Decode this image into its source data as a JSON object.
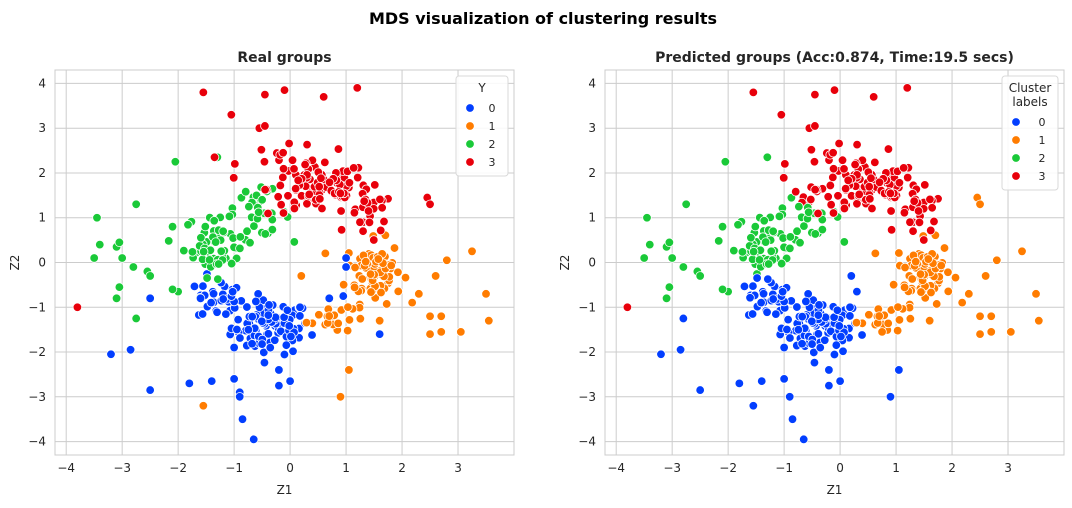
{
  "figure": {
    "suptitle": "MDS visualization of clustering results"
  },
  "colors": {
    "0": "#023eff",
    "1": "#ff7c00",
    "2": "#1ac938",
    "3": "#e8000b"
  },
  "chart_data": [
    {
      "type": "scatter",
      "title": "Real groups",
      "xlabel": "Z1",
      "ylabel": "Z2",
      "xlim": [
        -4.2,
        4.0
      ],
      "ylim": [
        -4.3,
        4.3
      ],
      "xticks": [
        -4,
        -3,
        -2,
        -1,
        0,
        1,
        2,
        3
      ],
      "yticks": [
        -4,
        -3,
        -2,
        -1,
        0,
        1,
        2,
        3,
        4
      ],
      "grid": true,
      "legend": {
        "title": "Y",
        "placement": "top-right",
        "labels": [
          "0",
          "1",
          "2",
          "3"
        ]
      },
      "outliers": [
        [
          -3.2,
          -2.05,
          0
        ],
        [
          -2.85,
          -1.95,
          0
        ],
        [
          -2.5,
          -2.85,
          0
        ],
        [
          -2.5,
          -0.8,
          0
        ],
        [
          -1.8,
          -2.7,
          0
        ],
        [
          -1.4,
          -2.65,
          0
        ],
        [
          -1.0,
          -2.6,
          0
        ],
        [
          -0.9,
          -2.9,
          0
        ],
        [
          -0.9,
          -3.0,
          0
        ],
        [
          -0.85,
          -3.5,
          0
        ],
        [
          -0.65,
          -3.95,
          0
        ],
        [
          -0.2,
          -2.75,
          0
        ],
        [
          -0.2,
          -2.4,
          0
        ],
        [
          0.0,
          -2.65,
          0
        ],
        [
          -1.6,
          -0.8,
          0
        ],
        [
          -1.0,
          -1.9,
          0
        ],
        [
          0.7,
          -0.8,
          0
        ],
        [
          0.95,
          -0.75,
          0
        ],
        [
          1.0,
          -0.1,
          0
        ],
        [
          1.0,
          0.1,
          0
        ],
        [
          1.6,
          -1.6,
          0
        ],
        [
          -1.55,
          -3.2,
          1
        ],
        [
          0.9,
          -3.0,
          1
        ],
        [
          1.05,
          -2.4,
          1
        ],
        [
          1.6,
          -1.3,
          1
        ],
        [
          2.3,
          -0.7,
          1
        ],
        [
          2.5,
          -1.2,
          1
        ],
        [
          2.5,
          -1.6,
          1
        ],
        [
          2.6,
          -0.3,
          1
        ],
        [
          2.7,
          -1.55,
          1
        ],
        [
          2.7,
          -1.2,
          1
        ],
        [
          3.05,
          -1.55,
          1
        ],
        [
          3.25,
          0.25,
          1
        ],
        [
          3.5,
          -0.7,
          1
        ],
        [
          3.55,
          -1.3,
          1
        ],
        [
          2.8,
          0.05,
          1
        ],
        [
          0.2,
          -0.3,
          1
        ],
        [
          -3.45,
          1.0,
          2
        ],
        [
          -3.4,
          0.4,
          2
        ],
        [
          -3.5,
          0.1,
          2
        ],
        [
          -3.1,
          0.35,
          2
        ],
        [
          -3.05,
          0.45,
          2
        ],
        [
          -3.0,
          0.1,
          2
        ],
        [
          -3.05,
          -0.55,
          2
        ],
        [
          -3.1,
          -0.8,
          2
        ],
        [
          -2.75,
          1.3,
          2
        ],
        [
          -2.8,
          -0.1,
          2
        ],
        [
          -2.75,
          -1.25,
          2
        ],
        [
          -2.55,
          -0.2,
          2
        ],
        [
          -2.5,
          -0.3,
          2
        ],
        [
          -2.05,
          2.25,
          2
        ],
        [
          -2.1,
          0.8,
          2
        ],
        [
          -2.0,
          -0.65,
          2
        ],
        [
          -2.1,
          -0.6,
          2
        ],
        [
          -1.3,
          2.35,
          2
        ],
        [
          -0.6,
          1.5,
          2
        ],
        [
          -0.5,
          1.4,
          2
        ],
        [
          -3.8,
          -1.0,
          3
        ],
        [
          -1.55,
          3.8,
          3
        ],
        [
          -1.05,
          3.3,
          3
        ],
        [
          -1.35,
          2.35,
          3
        ],
        [
          -0.45,
          3.75,
          3
        ],
        [
          -0.1,
          3.85,
          3
        ],
        [
          0.6,
          3.7,
          3
        ],
        [
          1.2,
          3.9,
          3
        ],
        [
          2.45,
          1.45,
          3
        ],
        [
          2.5,
          1.3,
          3
        ],
        [
          -0.55,
          3.0,
          3
        ],
        [
          -0.45,
          3.05,
          3
        ]
      ]
    },
    {
      "type": "scatter",
      "title": "Predicted groups (Acc:0.874, Time:19.5 secs)",
      "xlabel": "Z1",
      "ylabel": "Z2",
      "xlim": [
        -4.2,
        4.0
      ],
      "ylim": [
        -4.3,
        4.3
      ],
      "xticks": [
        -4,
        -3,
        -2,
        -1,
        0,
        1,
        2,
        3
      ],
      "yticks": [
        -4,
        -3,
        -2,
        -1,
        0,
        1,
        2,
        3,
        4
      ],
      "grid": true,
      "legend": {
        "title": "Cluster\nlabels",
        "placement": "top-right",
        "labels": [
          "0",
          "1",
          "2",
          "3"
        ]
      },
      "outliers": [
        [
          -3.2,
          -2.05,
          0
        ],
        [
          -2.85,
          -1.95,
          0
        ],
        [
          -2.5,
          -2.85,
          0
        ],
        [
          -1.8,
          -2.7,
          0
        ],
        [
          -1.4,
          -2.65,
          0
        ],
        [
          -1.55,
          -3.2,
          0
        ],
        [
          -1.0,
          -2.6,
          0
        ],
        [
          -0.9,
          -3.0,
          0
        ],
        [
          -0.85,
          -3.5,
          0
        ],
        [
          -0.65,
          -3.95,
          0
        ],
        [
          -0.2,
          -2.75,
          0
        ],
        [
          -0.2,
          -2.4,
          0
        ],
        [
          0.0,
          -2.65,
          0
        ],
        [
          0.9,
          -3.0,
          0
        ],
        [
          1.05,
          -2.4,
          0
        ],
        [
          -2.8,
          -1.25,
          0
        ],
        [
          -1.0,
          -1.9,
          0
        ],
        [
          0.2,
          -0.3,
          0
        ],
        [
          0.3,
          -0.65,
          0
        ],
        [
          0.75,
          -1.55,
          1
        ],
        [
          1.6,
          -1.3,
          1
        ],
        [
          2.3,
          -0.7,
          1
        ],
        [
          2.5,
          -1.2,
          1
        ],
        [
          2.5,
          -1.6,
          1
        ],
        [
          2.6,
          -0.3,
          1
        ],
        [
          2.7,
          -1.55,
          1
        ],
        [
          2.7,
          -1.2,
          1
        ],
        [
          3.05,
          -1.55,
          1
        ],
        [
          3.25,
          0.25,
          1
        ],
        [
          3.5,
          -0.7,
          1
        ],
        [
          3.55,
          -1.3,
          1
        ],
        [
          2.8,
          0.05,
          1
        ],
        [
          2.45,
          1.45,
          1
        ],
        [
          2.5,
          1.3,
          1
        ],
        [
          -3.45,
          1.0,
          2
        ],
        [
          -3.4,
          0.4,
          2
        ],
        [
          -3.5,
          0.1,
          2
        ],
        [
          -3.1,
          0.35,
          2
        ],
        [
          -3.05,
          0.45,
          2
        ],
        [
          -3.0,
          0.1,
          2
        ],
        [
          -3.05,
          -0.55,
          2
        ],
        [
          -3.1,
          -0.8,
          2
        ],
        [
          -2.75,
          1.3,
          2
        ],
        [
          -2.8,
          -0.1,
          2
        ],
        [
          -2.55,
          -0.2,
          2
        ],
        [
          -2.5,
          -0.3,
          2
        ],
        [
          -2.05,
          2.25,
          2
        ],
        [
          -2.1,
          0.8,
          2
        ],
        [
          -2.0,
          -0.65,
          2
        ],
        [
          -2.1,
          -0.6,
          2
        ],
        [
          -1.3,
          2.35,
          2
        ],
        [
          -3.8,
          -1.0,
          3
        ],
        [
          -1.55,
          3.8,
          3
        ],
        [
          -1.05,
          3.3,
          3
        ],
        [
          -0.45,
          3.75,
          3
        ],
        [
          -0.1,
          3.85,
          3
        ],
        [
          0.6,
          3.7,
          3
        ],
        [
          1.2,
          3.9,
          3
        ],
        [
          -0.55,
          3.0,
          3
        ],
        [
          -0.45,
          3.05,
          3
        ]
      ]
    }
  ]
}
